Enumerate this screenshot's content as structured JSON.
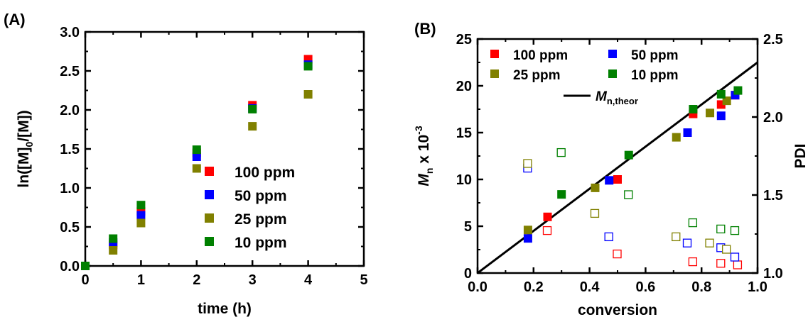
{
  "chart_data": [
    {
      "type": "scatter",
      "panel_label": "(A)",
      "xlabel": "time (h)",
      "ylabel_base": "ln([M]",
      "ylabel_sub": "0",
      "ylabel_tail": "/[M])",
      "xlim": [
        0,
        5
      ],
      "ylim": [
        0,
        3.0
      ],
      "xticks": [
        0,
        1,
        2,
        3,
        4,
        5
      ],
      "yticks": [
        0.0,
        0.5,
        1.0,
        1.5,
        2.0,
        2.5,
        3.0
      ],
      "xtick_labels": [
        "0",
        "1",
        "2",
        "3",
        "4",
        "5"
      ],
      "ytick_labels": [
        "0.0",
        "0.5",
        "1.0",
        "1.5",
        "2.0",
        "2.5",
        "3.0"
      ],
      "legend_position": "lower-right",
      "series": [
        {
          "name": "100 ppm",
          "color": "#ff0000",
          "x": [
            0,
            0.5,
            1,
            2,
            3,
            4
          ],
          "y": [
            0,
            0.27,
            0.7,
            1.45,
            2.06,
            2.65
          ]
        },
        {
          "name": "50 ppm",
          "color": "#0000ff",
          "x": [
            0,
            0.5,
            1,
            2,
            3,
            4
          ],
          "y": [
            0,
            0.3,
            0.65,
            1.4,
            2.02,
            2.58
          ]
        },
        {
          "name": "25 ppm",
          "color": "#808000",
          "x": [
            0,
            0.5,
            1,
            2,
            3,
            4
          ],
          "y": [
            0,
            0.2,
            0.55,
            1.25,
            1.79,
            2.2
          ]
        },
        {
          "name": "10 ppm",
          "color": "#008000",
          "x": [
            0,
            0.5,
            1,
            2,
            3,
            4
          ],
          "y": [
            0,
            0.35,
            0.78,
            1.49,
            2.01,
            2.56
          ]
        }
      ]
    },
    {
      "type": "scatter",
      "panel_label": "(B)",
      "xlabel": "conversion",
      "ylabel_left_main": "M",
      "ylabel_left_sub": "n",
      "ylabel_left_tail": " x 10",
      "ylabel_left_sup": "-3",
      "ylabel_right": "PDI",
      "xlim": [
        0,
        1.0
      ],
      "ylim_left": [
        0,
        25
      ],
      "ylim_right": [
        1.0,
        2.5
      ],
      "xticks": [
        0,
        0.2,
        0.4,
        0.6,
        0.8,
        1.0
      ],
      "xtick_labels": [
        "0.0",
        "0.2",
        "0.4",
        "0.6",
        "0.8",
        "1.0"
      ],
      "yticks_left": [
        0,
        5,
        10,
        15,
        20,
        25
      ],
      "ytick_labels_left": [
        "0",
        "5",
        "10",
        "15",
        "20",
        "25"
      ],
      "yticks_right": [
        1.0,
        1.5,
        2.0,
        2.5
      ],
      "ytick_labels_right": [
        "1.0",
        "1.5",
        "2.0",
        "2.5"
      ],
      "legend_position": "top-left",
      "theory_line": {
        "name_main": "M",
        "name_sub": "n,theor",
        "x": [
          0,
          1.0
        ],
        "y": [
          0,
          22.5
        ]
      },
      "series": [
        {
          "name": "100 ppm",
          "color": "#ff0000",
          "conversion": [
            0.25,
            0.5,
            0.77,
            0.87,
            0.92
          ],
          "Mn": [
            6.0,
            10.0,
            17.0,
            18.0,
            19.0
          ],
          "pdi_conversion": [
            0.25,
            0.5,
            0.77,
            0.87,
            0.93
          ],
          "PDI": [
            1.27,
            1.12,
            1.07,
            1.06,
            1.05
          ]
        },
        {
          "name": "50 ppm",
          "color": "#0000ff",
          "conversion": [
            0.18,
            0.47,
            0.75,
            0.87,
            0.92
          ],
          "Mn": [
            3.7,
            9.9,
            15.0,
            16.8,
            19.0
          ],
          "pdi_conversion": [
            0.18,
            0.47,
            0.75,
            0.87,
            0.92
          ],
          "PDI": [
            1.67,
            1.23,
            1.19,
            1.16,
            1.1
          ]
        },
        {
          "name": "25 ppm",
          "color": "#808000",
          "conversion": [
            0.18,
            0.42,
            0.71,
            0.83,
            0.89
          ],
          "Mn": [
            4.6,
            9.1,
            14.5,
            17.1,
            18.4
          ],
          "pdi_conversion": [
            0.18,
            0.42,
            0.71,
            0.83,
            0.89
          ],
          "PDI": [
            1.7,
            1.38,
            1.23,
            1.19,
            1.15
          ]
        },
        {
          "name": "10 ppm",
          "color": "#008000",
          "conversion": [
            0.3,
            0.54,
            0.77,
            0.87,
            0.93
          ],
          "Mn": [
            8.4,
            12.6,
            17.5,
            19.1,
            19.5
          ],
          "pdi_conversion": [
            0.3,
            0.54,
            0.77,
            0.87,
            0.92
          ],
          "PDI": [
            1.77,
            1.5,
            1.32,
            1.28,
            1.27
          ]
        }
      ]
    }
  ]
}
